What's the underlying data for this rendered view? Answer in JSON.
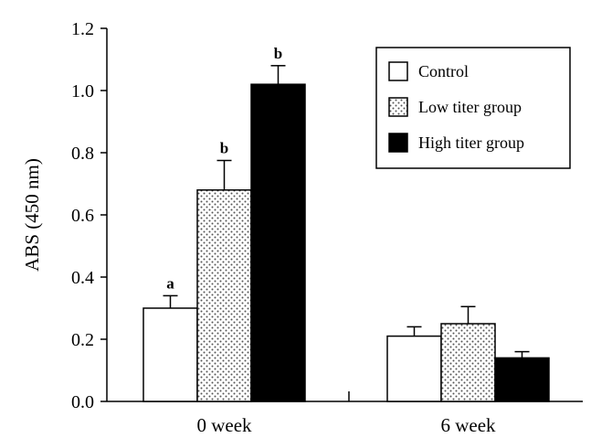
{
  "chart_data": {
    "type": "bar",
    "title": "",
    "xlabel": "",
    "ylabel": "ABS (450 nm)",
    "ylim": [
      0,
      1.2
    ],
    "yticks": [
      "0.0",
      "0.2",
      "0.4",
      "0.6",
      "0.8",
      "1.0",
      "1.2"
    ],
    "categories": [
      "0 week",
      "6 week"
    ],
    "series": [
      {
        "name": "Control",
        "fill": "white",
        "values": [
          0.3,
          0.21
        ],
        "errors": [
          0.04,
          0.03
        ],
        "labels": [
          "a",
          ""
        ]
      },
      {
        "name": "Low titer group",
        "fill": "dotted",
        "values": [
          0.68,
          0.25
        ],
        "errors": [
          0.095,
          0.055
        ],
        "labels": [
          "b",
          ""
        ]
      },
      {
        "name": "High titer group",
        "fill": "black",
        "values": [
          1.02,
          0.14
        ],
        "errors": [
          0.06,
          0.02
        ],
        "labels": [
          "b",
          ""
        ]
      }
    ],
    "legend_position": "top-right",
    "grid": false,
    "error_bars": true
  },
  "colors": {
    "axis": "#000000",
    "dots": "#555555",
    "black_fill": "#000000",
    "white_fill": "#ffffff"
  }
}
